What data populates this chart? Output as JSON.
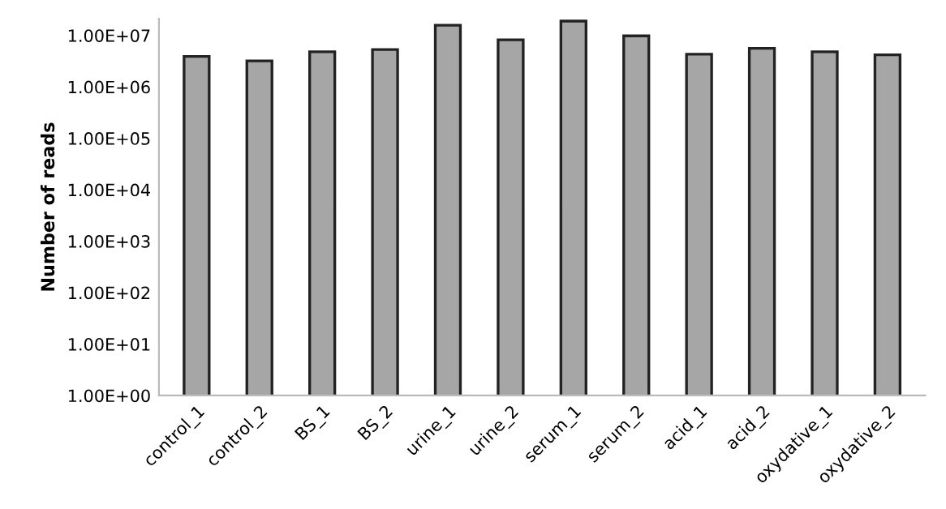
{
  "chart_data": {
    "type": "bar",
    "ylabel": "Number of reads",
    "log": "y",
    "grid": false,
    "legend": false,
    "categories": [
      "control_1",
      "control_2",
      "BS_1",
      "BS_2",
      "urine_1",
      "urine_2",
      "serum_1",
      "serum_2",
      "acid_1",
      "acid_2",
      "oxydative_1",
      "oxydative_2"
    ],
    "values": [
      3900000,
      3200000,
      4800000,
      5300000,
      15800000,
      8200000,
      19000000,
      9800000,
      4300000,
      5600000,
      4800000,
      4200000
    ],
    "color": "#a6a6a6",
    "ylim": [
      1,
      21000000
    ],
    "yticks": [
      {
        "value": 1,
        "label": "1.00E+00"
      },
      {
        "value": 10,
        "label": "1.00E+01"
      },
      {
        "value": 100,
        "label": "1.00E+02"
      },
      {
        "value": 1000,
        "label": "1.00E+03"
      },
      {
        "value": 10000,
        "label": "1.00E+04"
      },
      {
        "value": 100000,
        "label": "1.00E+05"
      },
      {
        "value": 1000000,
        "label": "1.00E+06"
      },
      {
        "value": 10000000,
        "label": "1.00E+07"
      }
    ]
  }
}
